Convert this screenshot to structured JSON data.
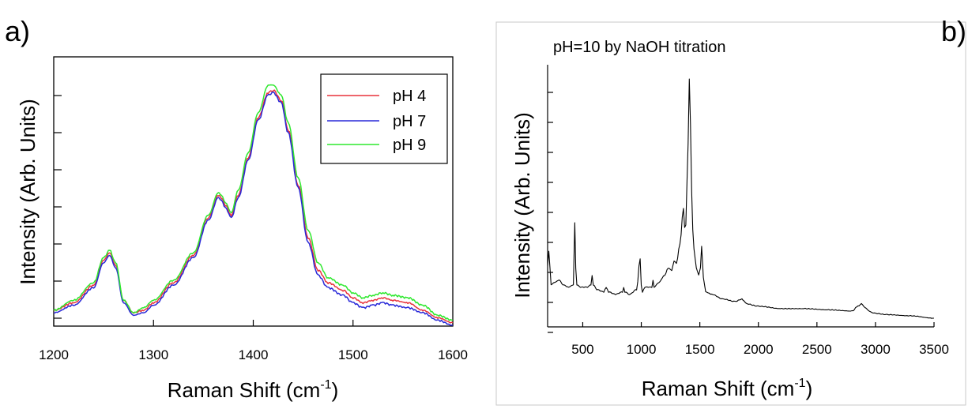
{
  "chart_data": [
    {
      "panel": "a)",
      "type": "line",
      "xlabel": "Raman Shift (cm",
      "xlabel_sup": "-1",
      "xlabel_end": ")",
      "ylabel": "Intensity (Arb. Units)",
      "xlim": [
        1200,
        1600
      ],
      "ylim": [
        0,
        1
      ],
      "x_ticks": [
        "1200",
        "1300",
        "1400",
        "1500",
        "1600"
      ],
      "y_ticks_labelled": false,
      "legend_position": "top-right",
      "grid": false,
      "series": [
        {
          "name": "pH 4",
          "color": "#e8323c",
          "x": [
            1200,
            1220,
            1240,
            1250,
            1256,
            1262,
            1270,
            1280,
            1290,
            1300,
            1320,
            1340,
            1355,
            1365,
            1368,
            1372,
            1378,
            1385,
            1395,
            1405,
            1415,
            1420,
            1428,
            1435,
            1445,
            1455,
            1465,
            1475,
            1490,
            1500,
            1510,
            1520,
            1530,
            1540,
            1555,
            1570,
            1585,
            1600
          ],
          "y": [
            0.06,
            0.09,
            0.16,
            0.26,
            0.29,
            0.24,
            0.1,
            0.05,
            0.06,
            0.09,
            0.17,
            0.28,
            0.43,
            0.52,
            0.51,
            0.48,
            0.44,
            0.52,
            0.67,
            0.83,
            0.93,
            0.94,
            0.9,
            0.78,
            0.56,
            0.35,
            0.22,
            0.17,
            0.14,
            0.11,
            0.09,
            0.1,
            0.11,
            0.1,
            0.09,
            0.06,
            0.03,
            0.01
          ]
        },
        {
          "name": "pH 7",
          "color": "#2828d8",
          "x": [
            1200,
            1220,
            1240,
            1250,
            1256,
            1262,
            1270,
            1280,
            1290,
            1300,
            1320,
            1340,
            1355,
            1365,
            1368,
            1372,
            1378,
            1385,
            1395,
            1405,
            1415,
            1420,
            1428,
            1435,
            1445,
            1455,
            1465,
            1475,
            1490,
            1500,
            1510,
            1520,
            1530,
            1540,
            1555,
            1570,
            1585,
            1600
          ],
          "y": [
            0.05,
            0.08,
            0.15,
            0.25,
            0.28,
            0.23,
            0.09,
            0.04,
            0.05,
            0.08,
            0.16,
            0.27,
            0.42,
            0.51,
            0.5,
            0.47,
            0.43,
            0.51,
            0.66,
            0.82,
            0.92,
            0.93,
            0.89,
            0.77,
            0.55,
            0.33,
            0.2,
            0.15,
            0.12,
            0.09,
            0.07,
            0.08,
            0.09,
            0.08,
            0.07,
            0.05,
            0.02,
            0.0
          ]
        },
        {
          "name": "pH 9",
          "color": "#2ee82e",
          "x": [
            1200,
            1220,
            1240,
            1250,
            1256,
            1262,
            1270,
            1280,
            1290,
            1300,
            1320,
            1340,
            1355,
            1365,
            1368,
            1372,
            1378,
            1385,
            1395,
            1405,
            1415,
            1420,
            1428,
            1435,
            1445,
            1455,
            1465,
            1475,
            1490,
            1500,
            1510,
            1520,
            1530,
            1540,
            1555,
            1570,
            1585,
            1600
          ],
          "y": [
            0.06,
            0.1,
            0.17,
            0.27,
            0.3,
            0.25,
            0.1,
            0.05,
            0.07,
            0.1,
            0.18,
            0.29,
            0.44,
            0.53,
            0.52,
            0.49,
            0.45,
            0.54,
            0.69,
            0.85,
            0.96,
            0.96,
            0.92,
            0.81,
            0.59,
            0.38,
            0.25,
            0.19,
            0.16,
            0.13,
            0.11,
            0.12,
            0.13,
            0.12,
            0.11,
            0.08,
            0.04,
            0.02
          ]
        }
      ]
    },
    {
      "panel": "b)",
      "type": "line",
      "title": "pH=10 by NaOH titration",
      "xlabel": "Raman Shift (cm",
      "xlabel_sup": "-1",
      "xlabel_end": ")",
      "ylabel": "Intensity (Arb. Units)",
      "xlim": [
        200,
        3500
      ],
      "ylim": [
        0,
        1
      ],
      "x_ticks": [
        "500",
        "1000",
        "1500",
        "2000",
        "2500",
        "3000",
        "3500"
      ],
      "y_ticks_labelled": false,
      "grid": false,
      "series": [
        {
          "name": "",
          "color": "#000000",
          "x": [
            200,
            210,
            230,
            260,
            300,
            330,
            380,
            420,
            432,
            440,
            450,
            480,
            540,
            570,
            580,
            590,
            620,
            680,
            700,
            720,
            780,
            840,
            850,
            860,
            900,
            960,
            990,
            1000,
            1010,
            1030,
            1090,
            1100,
            1110,
            1150,
            1200,
            1230,
            1260,
            1280,
            1300,
            1330,
            1360,
            1370,
            1380,
            1390,
            1400,
            1410,
            1420,
            1430,
            1440,
            1450,
            1470,
            1490,
            1505,
            1515,
            1530,
            1550,
            1600,
            1700,
            1800,
            1860,
            1880,
            1900,
            2000,
            2200,
            2400,
            2600,
            2800,
            2850,
            2880,
            2920,
            2960,
            3000,
            3100,
            3300,
            3500
          ],
          "y": [
            0.21,
            0.27,
            0.13,
            0.14,
            0.15,
            0.13,
            0.12,
            0.13,
            0.39,
            0.2,
            0.13,
            0.12,
            0.12,
            0.13,
            0.17,
            0.13,
            0.11,
            0.1,
            0.12,
            0.1,
            0.09,
            0.1,
            0.12,
            0.1,
            0.09,
            0.11,
            0.24,
            0.13,
            0.1,
            0.12,
            0.12,
            0.15,
            0.12,
            0.14,
            0.17,
            0.2,
            0.19,
            0.23,
            0.22,
            0.3,
            0.45,
            0.37,
            0.38,
            0.55,
            0.72,
            0.99,
            0.8,
            0.52,
            0.36,
            0.28,
            0.2,
            0.17,
            0.2,
            0.29,
            0.16,
            0.1,
            0.09,
            0.07,
            0.06,
            0.07,
            0.06,
            0.05,
            0.04,
            0.03,
            0.03,
            0.025,
            0.02,
            0.04,
            0.05,
            0.03,
            0.015,
            0.01,
            0.005,
            0.0,
            -0.01
          ]
        }
      ]
    }
  ]
}
